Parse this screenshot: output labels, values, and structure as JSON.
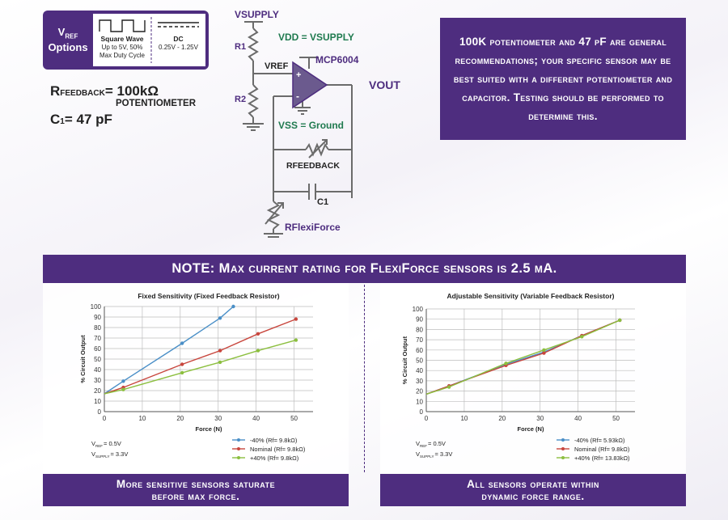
{
  "vref_options": {
    "label_v": "V",
    "label_ref": "REF",
    "label_options": "Options",
    "square": {
      "title": "Square Wave",
      "line1": "Up to 5V, 50%",
      "line2": "Max Duty Cycle"
    },
    "dc": {
      "title": "DC",
      "line1": "0.25V - 1.25V"
    }
  },
  "formulas": {
    "rfeedback_r": "R",
    "rfeedback_sub": "FEEDBACK",
    "rfeedback_value": "= 100kΩ",
    "rfeedback_unit": "POTENTIOMETER",
    "c1_c": "C",
    "c1_sub": "1",
    "c1_value": "= 47 pF"
  },
  "circuit": {
    "vsupply": "VSUPPLY",
    "r1": "R1",
    "r2": "R2",
    "vref": "VREF",
    "vdd": "VDD = VSUPPLY",
    "opamp": "MCP6004",
    "vout": "VOUT",
    "vss": "VSS = Ground",
    "rfeedback": "RFEEDBACK",
    "c1": "C1",
    "rflexiforce": "RFlexiForce",
    "plus": "+",
    "minus": "-"
  },
  "callout_text": "100K potentiometer and 47 pF are general recommendations; your specific sensor may be best suited with a different potentiometer and capacitor. Testing should be performed to determine this.",
  "note_text": "NOTE: Max current rating for FlexiForce sensors is 2.5 mA.",
  "chart_data": [
    {
      "type": "line",
      "title": "Fixed Sensitivity (Fixed Feedback Resistor)",
      "xlabel": "Force (N)",
      "ylabel": "% Circuit Output",
      "xlim": [
        0,
        55
      ],
      "ylim": [
        0,
        100
      ],
      "xticks": [
        0,
        10,
        20,
        30,
        40,
        50
      ],
      "yticks": [
        0,
        10,
        20,
        30,
        40,
        50,
        60,
        70,
        80,
        90,
        100
      ],
      "grid": true,
      "legend": "bottom-right",
      "vref_note": "= 0.5V",
      "vsupply_note": "= 3.3V",
      "series": [
        {
          "name": "-40% (Rf= 9.8kΩ)",
          "color": "#4a8fc7",
          "x": [
            0,
            5,
            20.5,
            30.5,
            34
          ],
          "y": [
            17,
            29,
            65,
            89,
            100
          ]
        },
        {
          "name": "Nominal (Rf= 9.8kΩ)",
          "color": "#c8463d",
          "x": [
            0,
            5,
            20.5,
            30.5,
            40.5,
            50.5
          ],
          "y": [
            17,
            23,
            45,
            58,
            74,
            88
          ]
        },
        {
          "name": "+40% (Rf= 9.8kΩ)",
          "color": "#8cbf3f",
          "x": [
            0,
            5,
            20.5,
            30.5,
            40.5,
            50.5
          ],
          "y": [
            17,
            21,
            37,
            47,
            58,
            68
          ]
        }
      ]
    },
    {
      "type": "line",
      "title": "Adjustable Sensitivity (Variable Feedback Resistor)",
      "xlabel": "Force (N)",
      "ylabel": "% Circuit Output",
      "xlim": [
        0,
        55
      ],
      "ylim": [
        0,
        100
      ],
      "xticks": [
        0,
        10,
        20,
        30,
        40,
        50
      ],
      "yticks": [
        0,
        10,
        20,
        30,
        40,
        50,
        60,
        70,
        80,
        90,
        100
      ],
      "grid": true,
      "legend": "bottom-right",
      "vref_note": "= 0.5V",
      "vsupply_note": "= 3.3V",
      "series": [
        {
          "name": "-40% (Rf= 5.93kΩ)",
          "color": "#4a8fc7",
          "x": [
            0,
            6,
            21,
            31,
            41,
            51
          ],
          "y": [
            17,
            25,
            46,
            58,
            74,
            89
          ]
        },
        {
          "name": "Nominal (Rf= 9.8kΩ)",
          "color": "#c8463d",
          "x": [
            0,
            6,
            21,
            31,
            41,
            51
          ],
          "y": [
            17,
            25,
            45,
            57,
            74,
            89
          ]
        },
        {
          "name": "+40% (Rf= 13.83kΩ)",
          "color": "#8cbf3f",
          "x": [
            0,
            6,
            21,
            31,
            41,
            51
          ],
          "y": [
            17,
            24,
            47,
            60,
            73,
            89
          ]
        }
      ]
    }
  ],
  "notes": {
    "v": "V",
    "ref": "REF",
    "supply": "SUPPLY"
  },
  "banners": {
    "left_line1": "More sensitive sensors saturate",
    "left_line2": "before max force.",
    "right_line1": "All sensors operate within",
    "right_line2": "dynamic force range."
  },
  "colors": {
    "brand_purple": "#4e2d7f",
    "circuit_gray": "#6b6b6b",
    "circuit_green": "#1f7a4f"
  }
}
